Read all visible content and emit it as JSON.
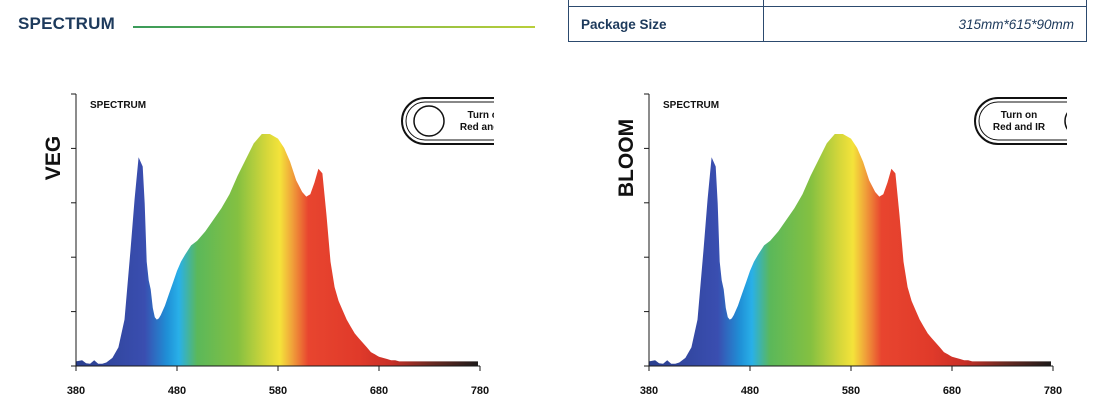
{
  "header": {
    "title": "SPECTRUM"
  },
  "spec_table": {
    "rows": [
      {
        "key": "Package Size",
        "value": "315mm*615*90mm"
      }
    ]
  },
  "chart_data": [
    {
      "type": "area",
      "mode_label": "VEG",
      "inner_title": "SPECTRUM",
      "toggle": {
        "line1": "Turn off",
        "line2": "Red and IR",
        "knob": "left"
      },
      "xlim": [
        380,
        780
      ],
      "xticks": [
        380,
        480,
        580,
        680,
        780
      ],
      "ylim": [
        0,
        1
      ],
      "y_tick_count": 5,
      "x": [
        380,
        386,
        390,
        394,
        398,
        402,
        406,
        410,
        416,
        422,
        428,
        434,
        438,
        442,
        446,
        448,
        450,
        452,
        454,
        456,
        458,
        460,
        462,
        464,
        468,
        472,
        476,
        480,
        484,
        488,
        494,
        500,
        508,
        516,
        524,
        532,
        540,
        548,
        556,
        564,
        572,
        580,
        586,
        592,
        598,
        604,
        608,
        612,
        616,
        620,
        624,
        628,
        632,
        636,
        640,
        644,
        648,
        652,
        656,
        660,
        664,
        668,
        670,
        672,
        674,
        676,
        678,
        680,
        684,
        688,
        692,
        696,
        700,
        710,
        720,
        730,
        740,
        750,
        760,
        770,
        778
      ],
      "values": [
        0.02,
        0.025,
        0.012,
        0.01,
        0.025,
        0.01,
        0.01,
        0.015,
        0.035,
        0.08,
        0.2,
        0.5,
        0.72,
        0.9,
        0.86,
        0.7,
        0.45,
        0.37,
        0.33,
        0.25,
        0.21,
        0.2,
        0.205,
        0.22,
        0.26,
        0.31,
        0.36,
        0.41,
        0.45,
        0.48,
        0.52,
        0.54,
        0.58,
        0.63,
        0.68,
        0.74,
        0.82,
        0.89,
        0.96,
        1.0,
        1.0,
        0.98,
        0.94,
        0.88,
        0.8,
        0.75,
        0.73,
        0.74,
        0.79,
        0.85,
        0.83,
        0.65,
        0.45,
        0.34,
        0.28,
        0.24,
        0.2,
        0.17,
        0.14,
        0.12,
        0.1,
        0.08,
        0.07,
        0.06,
        0.055,
        0.05,
        0.045,
        0.04,
        0.035,
        0.03,
        0.025,
        0.025,
        0.02,
        0.02,
        0.02,
        0.02,
        0.02,
        0.02,
        0.02,
        0.02,
        0.02
      ]
    },
    {
      "type": "area",
      "mode_label": "BLOOM",
      "inner_title": "SPECTRUM",
      "toggle": {
        "line1": "Turn on",
        "line2": "Red and IR",
        "knob": "right"
      },
      "xlim": [
        380,
        780
      ],
      "xticks": [
        380,
        480,
        580,
        680,
        780
      ],
      "ylim": [
        0,
        1
      ],
      "y_tick_count": 5,
      "x": [
        380,
        386,
        390,
        394,
        398,
        402,
        406,
        410,
        416,
        422,
        428,
        434,
        438,
        442,
        446,
        448,
        450,
        452,
        454,
        456,
        458,
        460,
        462,
        464,
        468,
        472,
        476,
        480,
        484,
        488,
        494,
        500,
        508,
        516,
        524,
        532,
        540,
        548,
        556,
        564,
        572,
        580,
        586,
        592,
        598,
        604,
        608,
        612,
        616,
        620,
        624,
        628,
        632,
        636,
        640,
        644,
        648,
        652,
        656,
        660,
        664,
        668,
        670,
        672,
        674,
        676,
        678,
        680,
        684,
        688,
        692,
        696,
        700,
        710,
        720,
        730,
        740,
        750,
        760,
        770,
        778
      ],
      "values": [
        0.02,
        0.025,
        0.012,
        0.01,
        0.025,
        0.01,
        0.01,
        0.015,
        0.035,
        0.08,
        0.2,
        0.5,
        0.72,
        0.9,
        0.86,
        0.7,
        0.45,
        0.37,
        0.33,
        0.25,
        0.21,
        0.2,
        0.205,
        0.22,
        0.26,
        0.31,
        0.36,
        0.41,
        0.45,
        0.48,
        0.52,
        0.54,
        0.58,
        0.63,
        0.68,
        0.74,
        0.82,
        0.89,
        0.96,
        1.0,
        1.0,
        0.98,
        0.94,
        0.88,
        0.8,
        0.75,
        0.73,
        0.74,
        0.79,
        0.85,
        0.83,
        0.65,
        0.45,
        0.34,
        0.28,
        0.24,
        0.2,
        0.17,
        0.14,
        0.12,
        0.1,
        0.08,
        0.07,
        0.06,
        0.055,
        0.05,
        0.045,
        0.04,
        0.035,
        0.03,
        0.025,
        0.025,
        0.02,
        0.02,
        0.02,
        0.02,
        0.02,
        0.02,
        0.02,
        0.02,
        0.02
      ]
    }
  ],
  "colors": {
    "title": "#1d3a5c",
    "axis": "#1a1a1a",
    "spectrum": [
      "#2a3f8f",
      "#3a4eb0",
      "#1f8fd6",
      "#29b0e8",
      "#5bb85a",
      "#84c041",
      "#d9d83a",
      "#f4e33a",
      "#f0a23a",
      "#e8452f",
      "#e03a2a",
      "#c92f27",
      "#6b2a22",
      "#1a1a1a"
    ]
  }
}
